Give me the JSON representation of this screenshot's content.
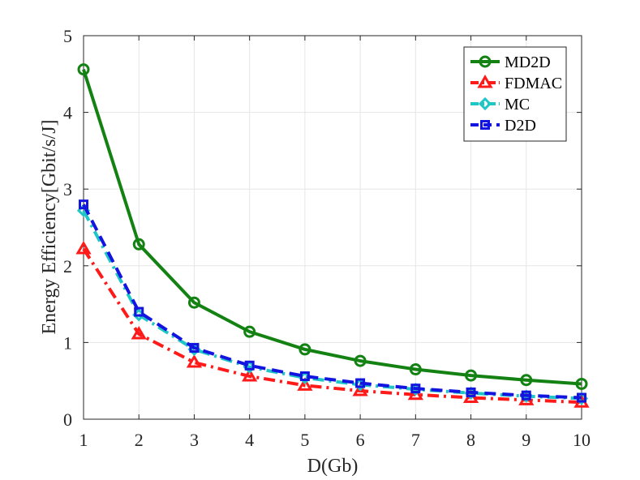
{
  "chart_data": {
    "type": "line",
    "title": "",
    "xlabel": "D(Gb)",
    "ylabel": "Energy Efficiency[Gbit/s/J]",
    "xlim": [
      1,
      10
    ],
    "ylim": [
      0,
      5
    ],
    "xticks": [
      1,
      2,
      3,
      4,
      5,
      6,
      7,
      8,
      9,
      10
    ],
    "yticks": [
      0,
      1,
      2,
      3,
      4,
      5
    ],
    "x": [
      1,
      2,
      3,
      4,
      5,
      6,
      7,
      8,
      9,
      10
    ],
    "grid": true,
    "legend_position": "top-right",
    "series": [
      {
        "name": "MD2D",
        "color": "#138213",
        "marker": "circle",
        "dash": "solid",
        "values": [
          4.56,
          2.28,
          1.52,
          1.14,
          0.91,
          0.76,
          0.65,
          0.57,
          0.51,
          0.46
        ]
      },
      {
        "name": "FDMAC",
        "color": "#ff1a1a",
        "marker": "triangle",
        "dash": "dashdot",
        "values": [
          2.22,
          1.11,
          0.74,
          0.56,
          0.44,
          0.37,
          0.32,
          0.28,
          0.25,
          0.22
        ]
      },
      {
        "name": "MC",
        "color": "#1fc6c6",
        "marker": "diamond",
        "dash": "dashdot",
        "values": [
          2.72,
          1.36,
          0.91,
          0.68,
          0.54,
          0.45,
          0.39,
          0.34,
          0.3,
          0.27
        ]
      },
      {
        "name": "D2D",
        "color": "#1414e0",
        "marker": "square",
        "dash": "dashed",
        "values": [
          2.8,
          1.4,
          0.93,
          0.7,
          0.56,
          0.47,
          0.4,
          0.35,
          0.31,
          0.28
        ]
      }
    ]
  }
}
